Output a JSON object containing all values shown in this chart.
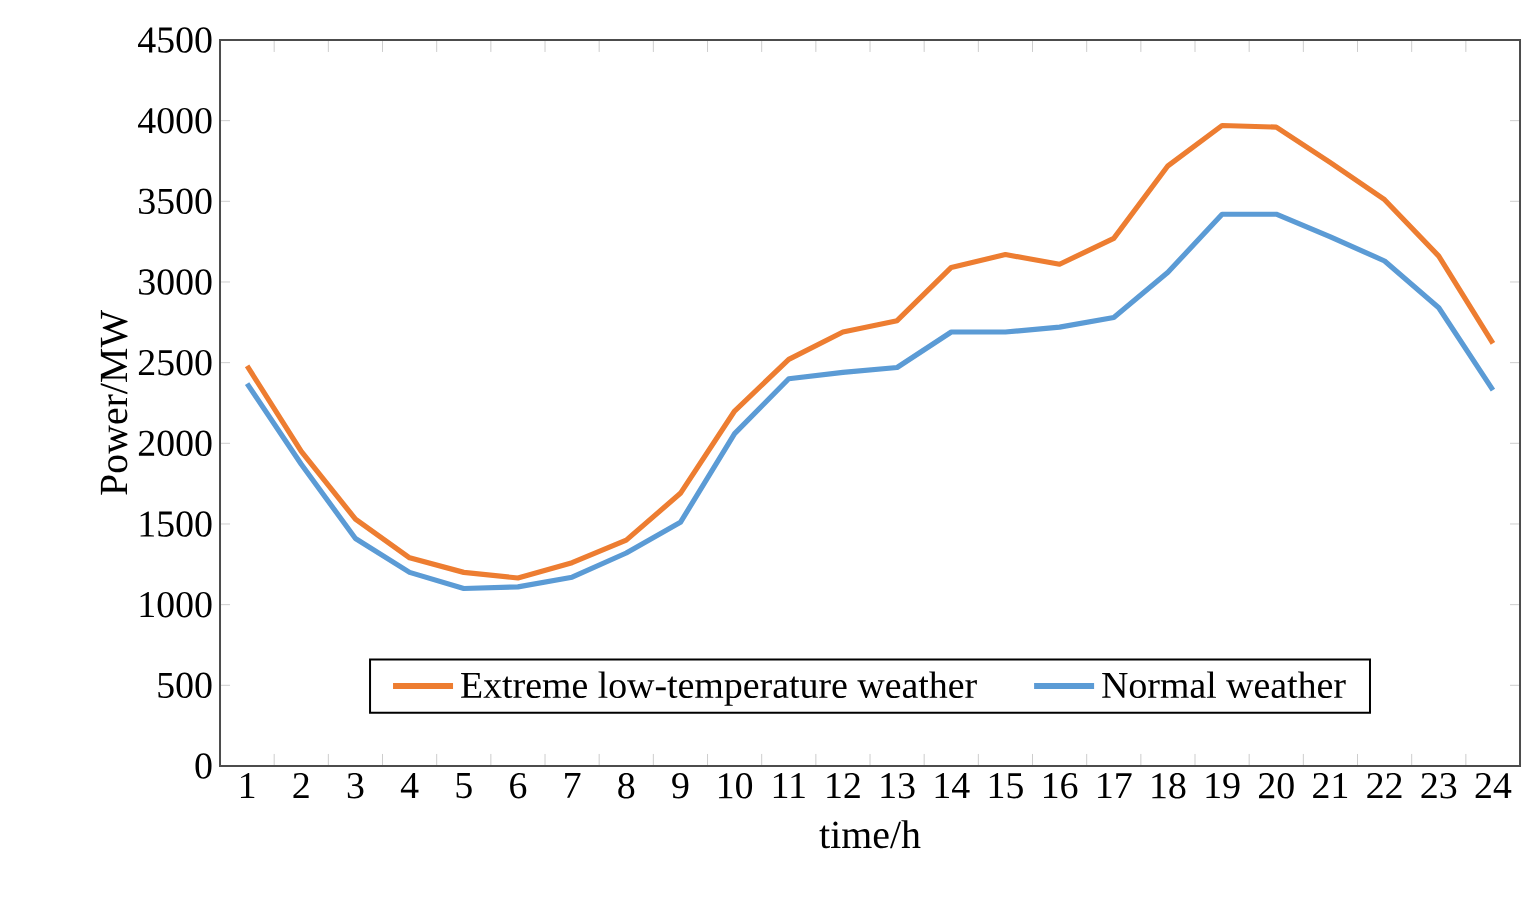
{
  "chart_data": {
    "type": "line",
    "xlabel": "time/h",
    "ylabel": "Power/MW",
    "categories": [
      "1",
      "2",
      "3",
      "4",
      "5",
      "6",
      "7",
      "8",
      "9",
      "10",
      "11",
      "12",
      "13",
      "14",
      "15",
      "16",
      "17",
      "18",
      "19",
      "20",
      "21",
      "22",
      "23",
      "24"
    ],
    "series": [
      {
        "name": "Extreme low-temperature weather",
        "color": "#ed7d31",
        "values": [
          2480,
          1950,
          1530,
          1290,
          1200,
          1165,
          1260,
          1400,
          1690,
          2200,
          2520,
          2690,
          2760,
          3090,
          3170,
          3110,
          3270,
          3720,
          3970,
          3960,
          3740,
          3510,
          3160,
          2620
        ]
      },
      {
        "name": "Normal weather",
        "color": "#5b9bd5",
        "values": [
          2370,
          1870,
          1410,
          1200,
          1100,
          1110,
          1170,
          1320,
          1510,
          2060,
          2400,
          2440,
          2470,
          2690,
          2690,
          2720,
          2780,
          3060,
          3420,
          3420,
          3280,
          3130,
          2840,
          2330
        ]
      }
    ],
    "ylim": [
      0,
      4500
    ],
    "yticks": [
      0,
      500,
      1000,
      1500,
      2000,
      2500,
      3000,
      3500,
      4000,
      4500
    ],
    "grid": false,
    "legend": "bottom",
    "marker": "none",
    "line_style": "solid"
  }
}
